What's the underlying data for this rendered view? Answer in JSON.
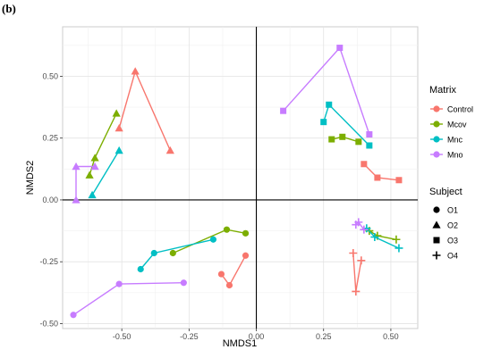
{
  "panel_label": "(b)",
  "chart_data": {
    "type": "scatter",
    "xlabel": "NMDS1",
    "ylabel": "NMDS2",
    "xlim": [
      -0.72,
      0.6
    ],
    "ylim": [
      -0.52,
      0.7
    ],
    "x_ticks": [
      -0.5,
      -0.25,
      0.0,
      0.25,
      0.5
    ],
    "x_tick_labels": [
      "-0.50",
      "-0.25",
      "0.00",
      "0.25",
      "0.50"
    ],
    "y_ticks": [
      -0.5,
      -0.25,
      0.0,
      0.25,
      0.5
    ],
    "y_tick_labels": [
      "-0.50",
      "-0.25",
      "0.00",
      "0.25",
      "0.50"
    ],
    "reference_lines": {
      "x": 0,
      "y": 0
    },
    "grid": true,
    "legend_placement": "right",
    "legends": {
      "matrix": {
        "title": "Matrix",
        "entries": [
          {
            "name": "Control",
            "color": "#F8766D"
          },
          {
            "name": "Mcov",
            "color": "#7CAE00"
          },
          {
            "name": "Mnc",
            "color": "#00BFC4"
          },
          {
            "name": "Mno",
            "color": "#C77CFF"
          }
        ]
      },
      "subject": {
        "title": "Subject",
        "entries": [
          {
            "name": "O1",
            "shape": "circle"
          },
          {
            "name": "O2",
            "shape": "triangle"
          },
          {
            "name": "O3",
            "shape": "square"
          },
          {
            "name": "O4",
            "shape": "plus"
          }
        ]
      }
    },
    "series": [
      {
        "matrix": "Control",
        "subject": "O1",
        "points": [
          [
            -0.13,
            -0.3
          ],
          [
            -0.1,
            -0.345
          ],
          [
            -0.04,
            -0.225
          ]
        ]
      },
      {
        "matrix": "Mcov",
        "subject": "O1",
        "points": [
          [
            -0.31,
            -0.215
          ],
          [
            -0.11,
            -0.12
          ],
          [
            -0.04,
            -0.135
          ]
        ]
      },
      {
        "matrix": "Mnc",
        "subject": "O1",
        "points": [
          [
            -0.43,
            -0.28
          ],
          [
            -0.38,
            -0.215
          ],
          [
            -0.16,
            -0.16
          ]
        ]
      },
      {
        "matrix": "Mno",
        "subject": "O1",
        "points": [
          [
            -0.68,
            -0.465
          ],
          [
            -0.51,
            -0.34
          ],
          [
            -0.27,
            -0.335
          ]
        ]
      },
      {
        "matrix": "Control",
        "subject": "O2",
        "points": [
          [
            -0.51,
            0.29
          ],
          [
            -0.45,
            0.52
          ],
          [
            -0.32,
            0.2
          ]
        ]
      },
      {
        "matrix": "Mcov",
        "subject": "O2",
        "points": [
          [
            -0.62,
            0.1
          ],
          [
            -0.6,
            0.17
          ],
          [
            -0.52,
            0.35
          ]
        ]
      },
      {
        "matrix": "Mnc",
        "subject": "O2",
        "points": [
          [
            -0.61,
            0.02
          ],
          [
            -0.51,
            0.2
          ]
        ]
      },
      {
        "matrix": "Mno",
        "subject": "O2",
        "points": [
          [
            -0.67,
            0.0
          ],
          [
            -0.67,
            0.135
          ],
          [
            -0.6,
            0.135
          ]
        ]
      },
      {
        "matrix": "Control",
        "subject": "O3",
        "points": [
          [
            0.4,
            0.145
          ],
          [
            0.45,
            0.09
          ],
          [
            0.53,
            0.08
          ]
        ]
      },
      {
        "matrix": "Mcov",
        "subject": "O3",
        "points": [
          [
            0.28,
            0.245
          ],
          [
            0.32,
            0.255
          ],
          [
            0.38,
            0.235
          ]
        ]
      },
      {
        "matrix": "Mnc",
        "subject": "O3",
        "points": [
          [
            0.25,
            0.315
          ],
          [
            0.27,
            0.385
          ],
          [
            0.42,
            0.22
          ]
        ]
      },
      {
        "matrix": "Mno",
        "subject": "O3",
        "points": [
          [
            0.1,
            0.36
          ],
          [
            0.31,
            0.615
          ],
          [
            0.42,
            0.265
          ]
        ]
      },
      {
        "matrix": "Control",
        "subject": "O4",
        "points": [
          [
            0.36,
            -0.215
          ],
          [
            0.37,
            -0.37
          ],
          [
            0.39,
            -0.245
          ]
        ]
      },
      {
        "matrix": "Mcov",
        "subject": "O4",
        "points": [
          [
            0.42,
            -0.125
          ],
          [
            0.45,
            -0.145
          ],
          [
            0.52,
            -0.16
          ]
        ]
      },
      {
        "matrix": "Mnc",
        "subject": "O4",
        "points": [
          [
            0.41,
            -0.115
          ],
          [
            0.44,
            -0.15
          ],
          [
            0.53,
            -0.195
          ]
        ]
      },
      {
        "matrix": "Mno",
        "subject": "O4",
        "points": [
          [
            0.37,
            -0.1
          ],
          [
            0.38,
            -0.09
          ],
          [
            0.4,
            -0.12
          ]
        ]
      }
    ]
  }
}
